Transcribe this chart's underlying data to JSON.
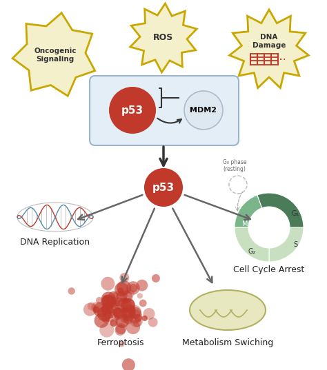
{
  "bg_color": "#ffffff",
  "star_fill": "#f5f0cc",
  "star_edge": "#c8a800",
  "p53_color": "#c0392b",
  "mdm2_fill": "#dde8f0",
  "mdm2_edge": "#aabccc",
  "box_fill": "#e4eef7",
  "box_edge": "#9ab4cc",
  "arrow_color": "#333333",
  "gray_arrow": "#666666",
  "dna_red": "#c0392b",
  "dna_blue": "#5588aa",
  "dna_rung": "#999999",
  "oncogenic_label": "Oncogenic\nSignaling",
  "ros_label": "ROS",
  "dna_damage_label": "DNA\nDamage",
  "dna_rep_label": "DNA Replication",
  "cell_cycle_label": "Cell Cycle Arrest",
  "ferroptosis_label": "Ferroptosis",
  "metabolism_label": "Metabolism Swiching",
  "g0_label": "G₀ phase\n(resting)",
  "g1_label": "G₁",
  "g2_label": "G₂",
  "s_label": "S",
  "m_label": "M",
  "ferrop_color": "#c0392b",
  "mito_fill": "#e8e8c0",
  "mito_edge": "#b0b060",
  "wedge_g1": "#c8dfc0",
  "wedge_s": "#c8dfc0",
  "wedge_g2": "#7ab68a",
  "wedge_m": "#4a7c59"
}
